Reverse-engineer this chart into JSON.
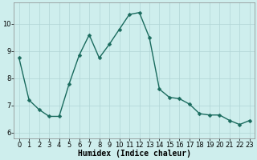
{
  "x": [
    0,
    1,
    2,
    3,
    4,
    5,
    6,
    7,
    8,
    9,
    10,
    11,
    12,
    13,
    14,
    15,
    16,
    17,
    18,
    19,
    20,
    21,
    22,
    23
  ],
  "y": [
    8.75,
    7.2,
    6.85,
    6.6,
    6.6,
    7.8,
    8.85,
    9.6,
    8.75,
    9.25,
    9.8,
    10.35,
    10.42,
    9.5,
    7.6,
    7.3,
    7.25,
    7.05,
    6.7,
    6.65,
    6.65,
    6.45,
    6.3,
    6.45
  ],
  "line_color": "#1a6b5e",
  "marker": "D",
  "markersize": 2.5,
  "linewidth": 1.0,
  "xlabel": "Humidex (Indice chaleur)",
  "xlabel_fontsize": 7,
  "xlim": [
    -0.5,
    23.5
  ],
  "ylim": [
    5.8,
    10.8
  ],
  "yticks": [
    6,
    7,
    8,
    9,
    10
  ],
  "xticks": [
    0,
    1,
    2,
    3,
    4,
    5,
    6,
    7,
    8,
    9,
    10,
    11,
    12,
    13,
    14,
    15,
    16,
    17,
    18,
    19,
    20,
    21,
    22,
    23
  ],
  "bg_color": "#ceeeed",
  "grid_color": "#b0d5d5",
  "tick_fontsize": 6,
  "grid_linewidth": 0.5
}
